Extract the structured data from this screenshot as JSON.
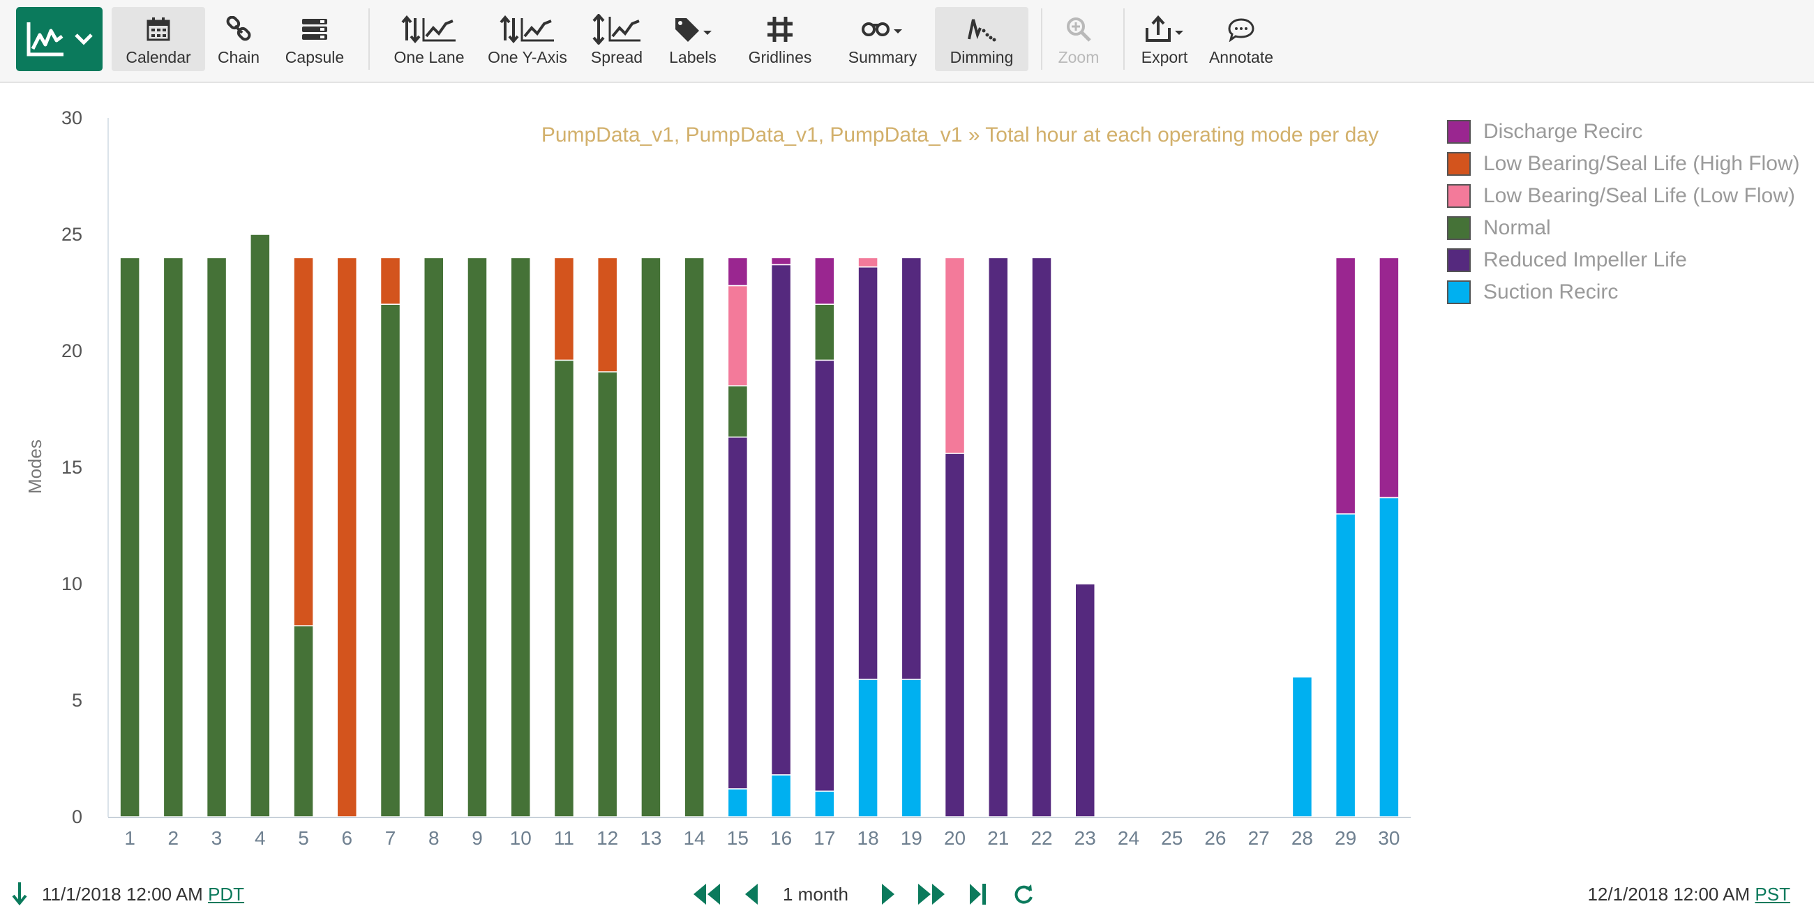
{
  "toolbar": {
    "buttons": [
      {
        "label": "Calendar",
        "icon": "calendar-icon"
      },
      {
        "label": "Chain",
        "icon": "chain-icon"
      },
      {
        "label": "Capsule",
        "icon": "capsule-icon"
      },
      {
        "label": "One Lane",
        "icon": "one-lane-icon"
      },
      {
        "label": "One Y-Axis",
        "icon": "one-y-axis-icon"
      },
      {
        "label": "Spread",
        "icon": "spread-icon"
      },
      {
        "label": "Labels",
        "icon": "labels-icon"
      },
      {
        "label": "Gridlines",
        "icon": "gridlines-icon"
      },
      {
        "label": "Summary",
        "icon": "summary-icon"
      },
      {
        "label": "Dimming",
        "icon": "dimming-icon"
      },
      {
        "label": "Zoom",
        "icon": "zoom-icon"
      },
      {
        "label": "Export",
        "icon": "export-icon"
      },
      {
        "label": "Annotate",
        "icon": "annotate-icon"
      }
    ]
  },
  "chart_data": {
    "type": "bar",
    "stacked": true,
    "title": "PumpData_v1, PumpData_v1, PumpData_v1 » Total hour at each operating mode per day",
    "ylabel": "Modes",
    "xlabel": "",
    "ylim": [
      0,
      30
    ],
    "yticks": [
      0,
      5,
      10,
      15,
      20,
      25,
      30
    ],
    "categories": [
      "1",
      "2",
      "3",
      "4",
      "5",
      "6",
      "7",
      "8",
      "9",
      "10",
      "11",
      "12",
      "13",
      "14",
      "15",
      "16",
      "17",
      "18",
      "19",
      "20",
      "21",
      "22",
      "23",
      "24",
      "25",
      "26",
      "27",
      "28",
      "29",
      "30"
    ],
    "legend_position": "right",
    "series": [
      {
        "name": "Suction Recirc",
        "color": "#00b0f0",
        "values": [
          0,
          0,
          0,
          0,
          0,
          0,
          0,
          0,
          0,
          0,
          0,
          0,
          0,
          0,
          1.2,
          1.8,
          1.1,
          5.9,
          5.9,
          0,
          0,
          0,
          0,
          0,
          0,
          0,
          0,
          6,
          13,
          13.7
        ]
      },
      {
        "name": "Reduced Impeller Life",
        "color": "#55297e",
        "values": [
          0,
          0,
          0,
          0,
          0,
          0,
          0,
          0,
          0,
          0,
          0,
          0,
          0,
          0,
          15.1,
          21.9,
          18.5,
          17.7,
          18.1,
          15.6,
          24,
          24,
          10,
          0,
          0,
          0,
          0,
          0,
          0,
          0
        ]
      },
      {
        "name": "Normal",
        "color": "#457237",
        "values": [
          24,
          24,
          24,
          25,
          8.2,
          0,
          22,
          24,
          24,
          24,
          19.6,
          19.1,
          24,
          24,
          2.2,
          0,
          2.4,
          0,
          0,
          0,
          0,
          0,
          0,
          0,
          0,
          0,
          0,
          0,
          0,
          0
        ]
      },
      {
        "name": "Low Bearing/Seal Life (High Flow)",
        "color": "#d3541d",
        "values": [
          0,
          0,
          0,
          0,
          15.8,
          24,
          2,
          0,
          0,
          0,
          4.4,
          4.9,
          0,
          0,
          0,
          0,
          0,
          0,
          0,
          0,
          0,
          0,
          0,
          0,
          0,
          0,
          0,
          0,
          0,
          0
        ]
      },
      {
        "name": "Low Bearing/Seal Life (Low Flow)",
        "color": "#f37a9a",
        "values": [
          0,
          0,
          0,
          0,
          0,
          0,
          0,
          0,
          0,
          0,
          0,
          0,
          0,
          0,
          4.3,
          0,
          0,
          0.4,
          0,
          8.4,
          0,
          0,
          0,
          0,
          0,
          0,
          0,
          0,
          0,
          0
        ]
      },
      {
        "name": "Discharge Recirc",
        "color": "#9a2690",
        "values": [
          0,
          0,
          0,
          0,
          0,
          0,
          0,
          0,
          0,
          0,
          0,
          0,
          0,
          0,
          1.2,
          0.3,
          2,
          0,
          0,
          0,
          0,
          0,
          0,
          0,
          0,
          0,
          0,
          0,
          11,
          10.3
        ]
      }
    ],
    "legend_order": [
      "Discharge Recirc",
      "Low Bearing/Seal Life (High Flow)",
      "Low Bearing/Seal Life (Low Flow)",
      "Normal",
      "Reduced Impeller Life",
      "Suction Recirc"
    ]
  },
  "footer": {
    "start_date": "11/1/2018 12:00 AM",
    "start_tz": "PDT",
    "duration": "1 month",
    "end_date": "12/1/2018 12:00 AM",
    "end_tz": "PST"
  }
}
